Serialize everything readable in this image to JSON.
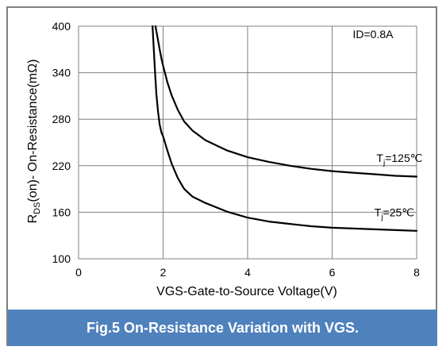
{
  "chart_data": {
    "type": "line",
    "xlabel": "VGS-Gate-to-Source  Voltage(V)",
    "ylabel_parts": {
      "r": "R",
      "sub": "DS",
      "rest": "(on)- On-Resistance(mΩ)"
    },
    "xlim": [
      0,
      8
    ],
    "ylim": [
      100,
      400
    ],
    "x_ticks": [
      0,
      2,
      4,
      6,
      8
    ],
    "y_ticks": [
      100,
      160,
      220,
      280,
      340,
      400
    ],
    "grid": true,
    "annotation": "ID=0.8A",
    "series": [
      {
        "name_parts": {
          "t": "T",
          "sub": "j",
          "rest": "=125℃"
        },
        "label_at": {
          "x": 7.05,
          "y": 225
        },
        "x": [
          1.82,
          1.87,
          1.92,
          1.97,
          2.0,
          2.1,
          2.2,
          2.35,
          2.5,
          2.7,
          3.0,
          3.5,
          4.0,
          4.5,
          5.0,
          5.5,
          6.0,
          6.5,
          7.0,
          7.5,
          8.0
        ],
        "y": [
          400,
          385,
          370,
          356,
          349,
          328,
          311,
          292,
          277,
          265,
          253,
          240,
          231,
          225,
          220,
          216,
          213,
          211,
          209,
          207,
          206
        ]
      },
      {
        "name_parts": {
          "t": "T",
          "sub": "j",
          "rest": "=25℃"
        },
        "label_at": {
          "x": 7.0,
          "y": 155
        },
        "x": [
          1.75,
          1.78,
          1.81,
          1.84,
          1.88,
          1.92,
          1.96,
          2.0,
          2.1,
          2.2,
          2.35,
          2.5,
          2.7,
          3.0,
          3.5,
          4.0,
          4.5,
          5.0,
          5.5,
          6.0,
          6.5,
          7.0,
          7.5,
          8.0
        ],
        "y": [
          400,
          370,
          340,
          313,
          290,
          273,
          263,
          258,
          240,
          223,
          204,
          190,
          180,
          172,
          161,
          153,
          148,
          145,
          142,
          140,
          139,
          138,
          137,
          136
        ]
      }
    ],
    "colors": {
      "line": "#000000",
      "grid": "#808080",
      "frame": "#808080",
      "banner": "#4f81bd"
    }
  },
  "caption": "Fig.5 On-Resistance Variation with VGS."
}
